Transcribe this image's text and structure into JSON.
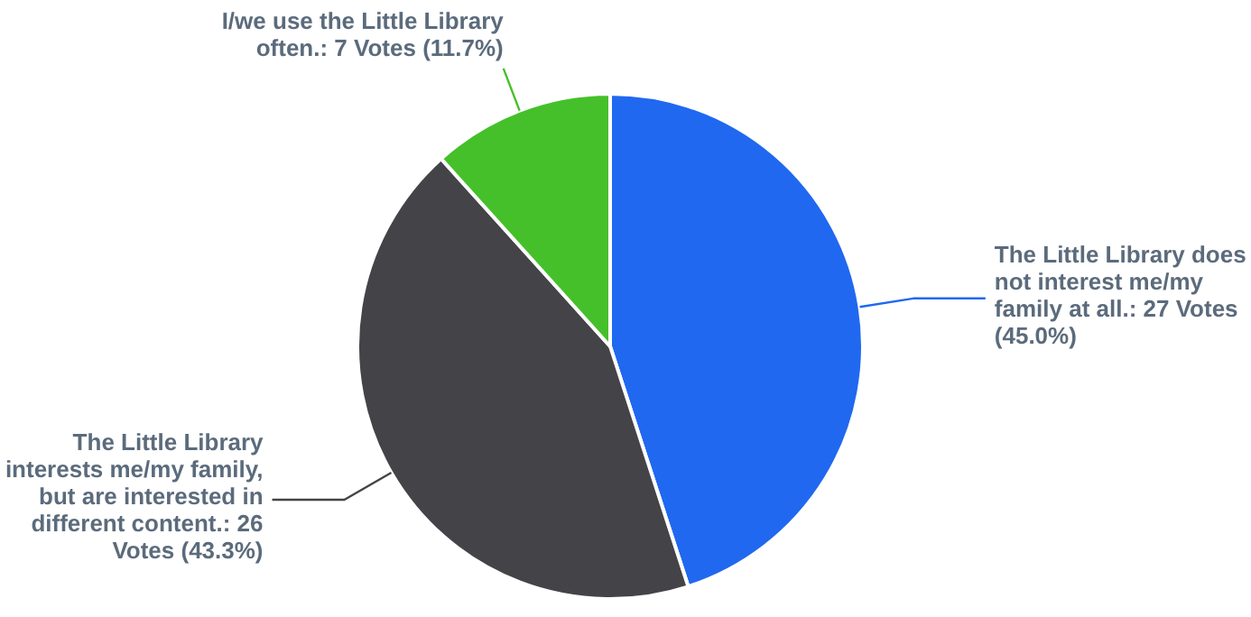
{
  "chart_data": {
    "type": "pie",
    "categories": [
      "The Little Library does not interest me/my family at all.",
      "The Little Library interests me/my family, but are interested in different content.",
      "I/we use the Little Library often."
    ],
    "values": [
      27,
      26,
      7
    ],
    "colors": [
      "#2068f0",
      "#434348",
      "#45c02a"
    ],
    "value_labels": [
      "27 Votes (45.0%)",
      "26 Votes (43.3%)",
      "7 Votes (11.7%)"
    ]
  }
}
